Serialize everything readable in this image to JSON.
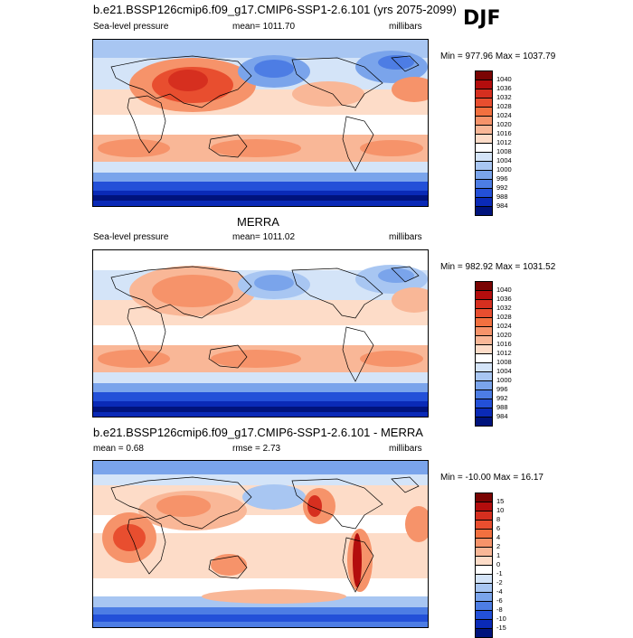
{
  "season": "DJF",
  "panels": [
    {
      "id": "model",
      "title": "b.e21.BSSP126cmip6.f09_g17.CMIP6-SSP1-2.6.101 (yrs 2075-2099)",
      "left_label": "Sea-level pressure",
      "center_label": "mean= 1011.70",
      "units": "millibars",
      "minmax": "Min = 977.96 Max = 1037.79",
      "colorbar": {
        "labels": [
          "1040",
          "1036",
          "1032",
          "1028",
          "1024",
          "1020",
          "1016",
          "1012",
          "1008",
          "1004",
          "1000",
          "996",
          "992",
          "988",
          "984"
        ],
        "colors": [
          "#7a0403",
          "#b30d0d",
          "#d62f1f",
          "#e84e2f",
          "#f2703f",
          "#f6936a",
          "#f9b797",
          "#fddcc8",
          "#ffffff",
          "#d4e4f8",
          "#a8c6f2",
          "#7aa4eb",
          "#4d7de4",
          "#2350d8",
          "#0a2ab7",
          "#00137c"
        ]
      }
    },
    {
      "id": "obs",
      "title": "MERRA",
      "left_label": "Sea-level pressure",
      "center_label": "mean= 1011.02",
      "units": "millibars",
      "minmax": "Min = 982.92 Max = 1031.52",
      "colorbar": {
        "labels": [
          "1040",
          "1036",
          "1032",
          "1028",
          "1024",
          "1020",
          "1016",
          "1012",
          "1008",
          "1004",
          "1000",
          "996",
          "992",
          "988",
          "984"
        ],
        "colors": [
          "#7a0403",
          "#b30d0d",
          "#d62f1f",
          "#e84e2f",
          "#f2703f",
          "#f6936a",
          "#f9b797",
          "#fddcc8",
          "#ffffff",
          "#d4e4f8",
          "#a8c6f2",
          "#7aa4eb",
          "#4d7de4",
          "#2350d8",
          "#0a2ab7",
          "#00137c"
        ]
      }
    },
    {
      "id": "diff",
      "title": "b.e21.BSSP126cmip6.f09_g17.CMIP6-SSP1-2.6.101 - MERRA",
      "left_label": "mean =   0.68",
      "center_label": "rmse =   2.73",
      "units": "millibars",
      "minmax": "Min = -10.00 Max =  16.17",
      "colorbar": {
        "labels": [
          "15",
          "10",
          "8",
          "6",
          "4",
          "2",
          "1",
          "0",
          "-1",
          "-2",
          "-4",
          "-6",
          "-8",
          "-10",
          "-15"
        ],
        "colors": [
          "#7a0403",
          "#b30d0d",
          "#d62f1f",
          "#e84e2f",
          "#f2703f",
          "#f6936a",
          "#f9b797",
          "#fddcc8",
          "#ffffff",
          "#d4e4f8",
          "#a8c6f2",
          "#7aa4eb",
          "#4d7de4",
          "#2350d8",
          "#0a2ab7",
          "#00137c"
        ]
      }
    }
  ]
}
